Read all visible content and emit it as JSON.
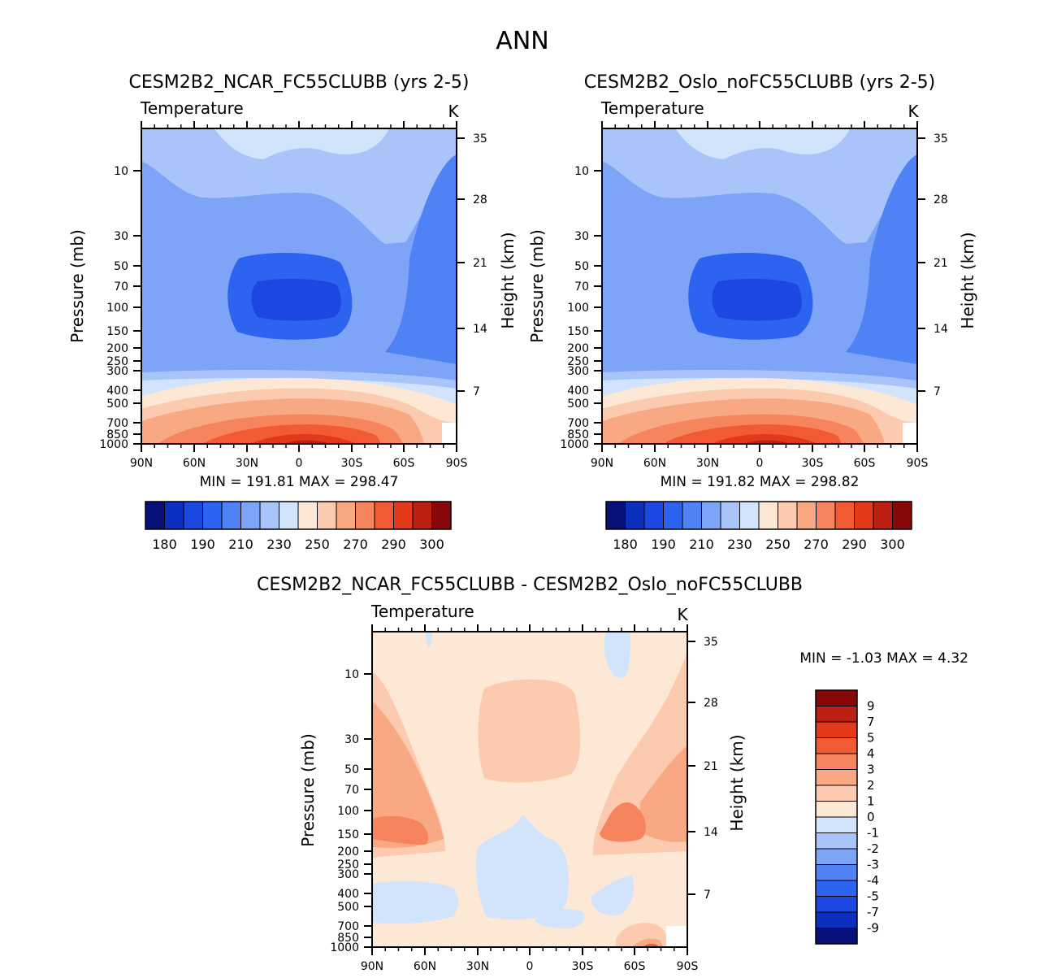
{
  "page_title": "ANN",
  "chart_data": [
    {
      "type": "heatmap",
      "panel": "top-left",
      "title": "CESM2B2_NCAR_FC55CLUBB (yrs 2-5)",
      "variable": "Temperature",
      "units": "K",
      "ylabel_left": "Pressure (mb)",
      "ylabel_right": "Height (km)",
      "x_ticks": [
        "90N",
        "60N",
        "30N",
        "0",
        "30S",
        "60S",
        "90S"
      ],
      "pressure_ticks": [
        "10",
        "30",
        "50",
        "70",
        "100",
        "150",
        "200",
        "250",
        "300",
        "400",
        "500",
        "700",
        "850",
        "1000"
      ],
      "height_ticks": [
        "35",
        "28",
        "21",
        "14",
        "7"
      ],
      "stats": "MIN = 191.81 MAX = 298.47",
      "min": 191.81,
      "max": 298.47,
      "colorbar": {
        "levels": [
          "180",
          "190",
          "210",
          "230",
          "250",
          "270",
          "290",
          "300"
        ],
        "colors": [
          "#08107a",
          "#0c2fc0",
          "#1c47e0",
          "#2c63f0",
          "#4e82f5",
          "#7da4f7",
          "#a9c4f8",
          "#d2e4fb",
          "#fde8d6",
          "#fbcaaf",
          "#f8a983",
          "#f6845c",
          "#f25a33",
          "#e4381a",
          "#bb2010",
          "#880809"
        ]
      }
    },
    {
      "type": "heatmap",
      "panel": "top-right",
      "title": "CESM2B2_Oslo_noFC55CLUBB (yrs 2-5)",
      "variable": "Temperature",
      "units": "K",
      "ylabel_left": "Pressure (mb)",
      "ylabel_right": "Height (km)",
      "x_ticks": [
        "90N",
        "60N",
        "30N",
        "0",
        "30S",
        "60S",
        "90S"
      ],
      "pressure_ticks": [
        "10",
        "30",
        "50",
        "70",
        "100",
        "150",
        "200",
        "250",
        "300",
        "400",
        "500",
        "700",
        "850",
        "1000"
      ],
      "height_ticks": [
        "35",
        "28",
        "21",
        "14",
        "7"
      ],
      "stats": "MIN = 191.82 MAX = 298.82",
      "min": 191.82,
      "max": 298.82,
      "colorbar": {
        "levels": [
          "180",
          "190",
          "210",
          "230",
          "250",
          "270",
          "290",
          "300"
        ],
        "colors": [
          "#08107a",
          "#0c2fc0",
          "#1c47e0",
          "#2c63f0",
          "#4e82f5",
          "#7da4f7",
          "#a9c4f8",
          "#d2e4fb",
          "#fde8d6",
          "#fbcaaf",
          "#f8a983",
          "#f6845c",
          "#f25a33",
          "#e4381a",
          "#bb2010",
          "#880809"
        ]
      }
    },
    {
      "type": "heatmap",
      "panel": "bottom",
      "title": "CESM2B2_NCAR_FC55CLUBB - CESM2B2_Oslo_noFC55CLUBB",
      "variable": "Temperature",
      "units": "K",
      "ylabel_left": "Pressure (mb)",
      "ylabel_right": "Height (km)",
      "x_ticks": [
        "90N",
        "60N",
        "30N",
        "0",
        "30S",
        "60S",
        "90S"
      ],
      "pressure_ticks": [
        "10",
        "30",
        "50",
        "70",
        "100",
        "150",
        "200",
        "250",
        "300",
        "400",
        "500",
        "700",
        "850",
        "1000"
      ],
      "height_ticks": [
        "35",
        "28",
        "21",
        "14",
        "7"
      ],
      "stats": "MIN = -1.03 MAX = 4.32",
      "min": -1.03,
      "max": 4.32,
      "colorbar": {
        "levels": [
          "9",
          "7",
          "5",
          "4",
          "3",
          "2",
          "1",
          "0",
          "-1",
          "-2",
          "-3",
          "-4",
          "-5",
          "-7",
          "-9"
        ],
        "colors": [
          "#880809",
          "#bb2010",
          "#e4381a",
          "#f25a33",
          "#f6845c",
          "#f8a983",
          "#fbcaaf",
          "#fde8d6",
          "#d2e4fb",
          "#a9c4f8",
          "#7da4f7",
          "#4e82f5",
          "#2c63f0",
          "#1c47e0",
          "#0c2fc0",
          "#08107a"
        ]
      }
    }
  ]
}
